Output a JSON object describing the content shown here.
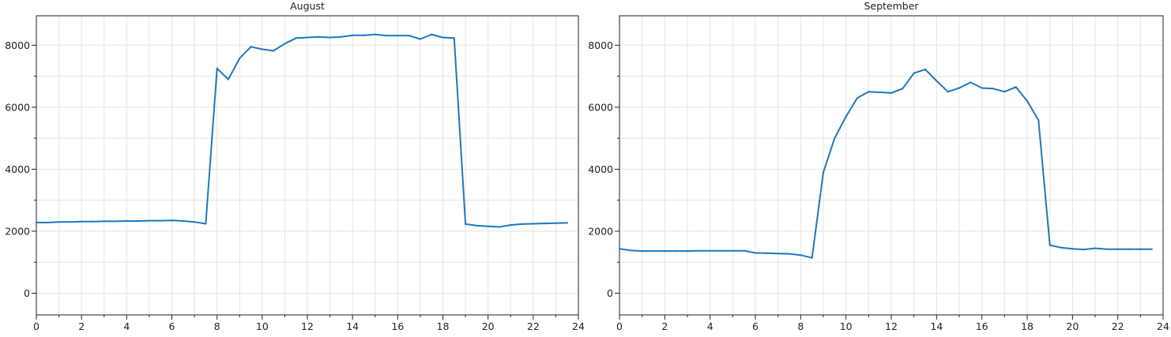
{
  "colors": {
    "line": "#1f77c0",
    "grid": "#e3e3e3",
    "axis": "#222222",
    "background": "#ffffff"
  },
  "chart_data": [
    {
      "type": "line",
      "title": "August",
      "xlabel": "",
      "ylabel": "",
      "xlim": [
        0,
        24
      ],
      "ylim": [
        -700,
        8950
      ],
      "xticks": [
        0,
        2,
        4,
        6,
        8,
        10,
        12,
        14,
        16,
        18,
        20,
        22,
        24
      ],
      "yticks": [
        0,
        2000,
        4000,
        6000,
        8000
      ],
      "grid": true,
      "series": [
        {
          "x": [
            0,
            0.5,
            1,
            1.5,
            2,
            2.5,
            3,
            3.5,
            4,
            4.5,
            5,
            5.5,
            6,
            6.5,
            7,
            7.5,
            8,
            8.5,
            9,
            9.5,
            10,
            10.5,
            11,
            11.5,
            12,
            12.5,
            13,
            13.5,
            14,
            14.5,
            15,
            15.5,
            16,
            16.5,
            17,
            17.5,
            18,
            18.5,
            19,
            19.5,
            20,
            20.5,
            21,
            21.5,
            22,
            22.5,
            23,
            23.5
          ],
          "y": [
            2280,
            2280,
            2300,
            2300,
            2310,
            2310,
            2320,
            2320,
            2330,
            2330,
            2340,
            2340,
            2350,
            2330,
            2300,
            2240,
            7250,
            6900,
            7580,
            7950,
            7870,
            7820,
            8050,
            8230,
            8250,
            8270,
            8250,
            8270,
            8320,
            8320,
            8350,
            8310,
            8310,
            8310,
            8200,
            8350,
            8250,
            8230,
            2230,
            2180,
            2160,
            2140,
            2200,
            2230,
            2240,
            2250,
            2260,
            2270
          ]
        }
      ]
    },
    {
      "type": "line",
      "title": "September",
      "xlabel": "",
      "ylabel": "",
      "xlim": [
        0,
        24
      ],
      "ylim": [
        -700,
        8950
      ],
      "xticks": [
        0,
        2,
        4,
        6,
        8,
        10,
        12,
        14,
        16,
        18,
        20,
        22,
        24
      ],
      "yticks": [
        0,
        2000,
        4000,
        6000,
        8000
      ],
      "grid": true,
      "series": [
        {
          "x": [
            0,
            0.5,
            1,
            1.5,
            2,
            2.5,
            3,
            3.5,
            4,
            4.5,
            5,
            5.5,
            6,
            6.5,
            7,
            7.5,
            8,
            8.5,
            9,
            9.5,
            10,
            10.5,
            11,
            11.5,
            12,
            12.5,
            13,
            13.5,
            14,
            14.5,
            15,
            15.5,
            16,
            16.5,
            17,
            17.5,
            18,
            18.5,
            19,
            19.5,
            20,
            20.5,
            21,
            21.5,
            22,
            22.5,
            23,
            23.5
          ],
          "y": [
            1430,
            1380,
            1360,
            1360,
            1360,
            1360,
            1360,
            1370,
            1370,
            1370,
            1370,
            1370,
            1300,
            1290,
            1280,
            1270,
            1230,
            1140,
            3900,
            5000,
            5700,
            6300,
            6500,
            6480,
            6460,
            6600,
            7100,
            7220,
            6850,
            6500,
            6620,
            6800,
            6620,
            6600,
            6500,
            6650,
            6200,
            5580,
            1550,
            1470,
            1430,
            1410,
            1450,
            1420,
            1420,
            1420,
            1420,
            1420
          ]
        }
      ]
    }
  ]
}
